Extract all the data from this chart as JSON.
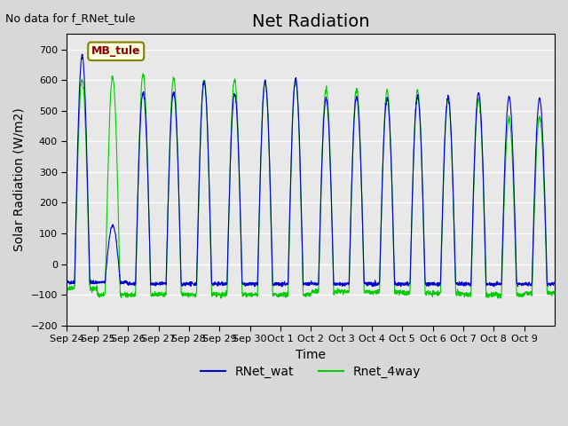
{
  "title": "Net Radiation",
  "xlabel": "Time",
  "ylabel": "Solar Radiation (W/m2)",
  "top_left_text": "No data for f_RNet_tule",
  "annotation_box": "MB_tule",
  "ylim": [
    -200,
    750
  ],
  "yticks": [
    -200,
    -100,
    0,
    100,
    200,
    300,
    400,
    500,
    600,
    700
  ],
  "xtick_labels": [
    "Sep 24",
    "Sep 25",
    "Sep 26",
    "Sep 27",
    "Sep 28",
    "Sep 29",
    "Sep 30",
    "Oct 1",
    "Oct 2",
    "Oct 3",
    "Oct 4",
    "Oct 5",
    "Oct 6",
    "Oct 7",
    "Oct 8",
    "Oct 9"
  ],
  "line1_color": "#0000cc",
  "line2_color": "#00cc00",
  "legend_labels": [
    "RNet_wat",
    "Rnet_4way"
  ],
  "background_color": "#e8e8e8",
  "plot_bg_color": "#e8e8e8",
  "n_days": 16,
  "title_fontsize": 14,
  "label_fontsize": 10,
  "blue_peaks": [
    680.0,
    125.0,
    560.0,
    560.0,
    595.0,
    555.0,
    595.0,
    605.0,
    540.0,
    545.0,
    540.0,
    545.0,
    545.0,
    560.0,
    545.0,
    540.0
  ],
  "green_peaks": [
    600.0,
    610.0,
    620.0,
    605.0,
    600.0,
    600.0,
    595.0,
    595.0,
    570.0,
    570.0,
    565.0,
    565.0,
    535.0,
    535.0,
    475.0,
    480.0
  ],
  "blue_nights": [
    -60.0,
    -60.0,
    -65.0,
    -65.0,
    -65.0,
    -65.0,
    -65.0,
    -65.0,
    -65.0,
    -65.0,
    -65.0,
    -65.0,
    -65.0,
    -65.0,
    -65.0,
    -65.0
  ],
  "green_nights": [
    -80.0,
    -100.0,
    -100.0,
    -100.0,
    -100.0,
    -100.0,
    -100.0,
    -100.0,
    -90.0,
    -90.0,
    -90.0,
    -95.0,
    -95.0,
    -100.0,
    -100.0,
    -95.0
  ]
}
